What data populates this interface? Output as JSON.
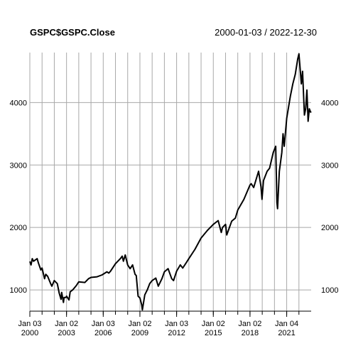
{
  "header": {
    "title": "GSPC$GSPC.Close",
    "date_range": "2000-01-03 / 2022-12-30"
  },
  "chart_data": {
    "type": "line",
    "title": "GSPC$GSPC.Close",
    "subtitle": "2000-01-03 / 2022-12-30",
    "xlabel": "",
    "ylabel": "",
    "xlim": [
      2000.0,
      2023.0
    ],
    "ylim": [
      660,
      4800
    ],
    "grid": true,
    "line_color": "#000000",
    "grid_color": "#a8a8a8",
    "y_ticks": [
      1000,
      2000,
      3000,
      4000
    ],
    "y_tick_labels": [
      "1000",
      "2000",
      "3000",
      "4000"
    ],
    "x_ticks": [
      2000.0,
      2003.0,
      2006.0,
      2009.0,
      2012.0,
      2015.0,
      2018.0,
      2021.0
    ],
    "x_tick_labels": [
      [
        "Jan 03",
        "2000"
      ],
      [
        "Jan 02",
        "2003"
      ],
      [
        "Jan 03",
        "2006"
      ],
      [
        "Jan 02",
        "2009"
      ],
      [
        "Jan 03",
        "2012"
      ],
      [
        "Jan 02",
        "2015"
      ],
      [
        "Jan 02",
        "2018"
      ],
      [
        "Jan 04",
        "2021"
      ]
    ],
    "x_gridlines": [
      2000.0,
      2001.0,
      2002.0,
      2003.0,
      2004.0,
      2005.0,
      2006.0,
      2007.0,
      2008.0,
      2009.0,
      2010.0,
      2011.0,
      2012.0,
      2013.0,
      2014.0,
      2015.0,
      2016.0,
      2017.0,
      2018.0,
      2019.0,
      2020.0,
      2021.0,
      2022.0
    ],
    "series": [
      {
        "x": [
          2000.0,
          2000.1,
          2000.2,
          2000.3,
          2000.45,
          2000.6,
          2000.7,
          2000.9,
          2001.0,
          2001.2,
          2001.3,
          2001.45,
          2001.7,
          2001.8,
          2002.0,
          2002.25,
          2002.4,
          2002.55,
          2002.6,
          2002.75,
          2002.8,
          2002.95,
          2003.0,
          2003.2,
          2003.3,
          2003.5,
          2003.8,
          2004.0,
          2004.5,
          2004.8,
          2005.0,
          2005.5,
          2005.9,
          2006.3,
          2006.45,
          2006.6,
          2007.0,
          2007.4,
          2007.55,
          2007.65,
          2007.8,
          2008.0,
          2008.2,
          2008.4,
          2008.6,
          2008.7,
          2008.85,
          2009.0,
          2009.15,
          2009.2,
          2009.4,
          2009.6,
          2009.8,
          2010.0,
          2010.3,
          2010.5,
          2010.8,
          2011.0,
          2011.3,
          2011.6,
          2011.75,
          2012.0,
          2012.3,
          2012.5,
          2012.8,
          2013.0,
          2013.5,
          2014.0,
          2014.5,
          2015.0,
          2015.4,
          2015.65,
          2015.75,
          2016.0,
          2016.1,
          2016.5,
          2016.8,
          2017.0,
          2017.5,
          2018.0,
          2018.1,
          2018.3,
          2018.7,
          2018.9,
          2018.98,
          2019.1,
          2019.4,
          2019.6,
          2019.9,
          2020.1,
          2020.2,
          2020.25,
          2020.4,
          2020.6,
          2020.7,
          2020.8,
          2021.0,
          2021.3,
          2021.5,
          2021.7,
          2021.9,
          2022.0,
          2022.2,
          2022.3,
          2022.45,
          2022.55,
          2022.65,
          2022.75,
          2022.85,
          2022.95,
          2023.0
        ],
        "y": [
          1455,
          1400,
          1500,
          1460,
          1480,
          1500,
          1430,
          1320,
          1350,
          1180,
          1250,
          1220,
          1100,
          1060,
          1150,
          1100,
          950,
          850,
          960,
          800,
          880,
          880,
          900,
          840,
          970,
          1000,
          1070,
          1130,
          1120,
          1180,
          1200,
          1210,
          1240,
          1290,
          1270,
          1300,
          1420,
          1500,
          1540,
          1460,
          1560,
          1400,
          1340,
          1400,
          1250,
          1230,
          900,
          870,
          760,
          680,
          920,
          1000,
          1100,
          1150,
          1190,
          1060,
          1180,
          1290,
          1340,
          1180,
          1150,
          1300,
          1400,
          1350,
          1440,
          1500,
          1650,
          1830,
          1950,
          2050,
          2110,
          1920,
          2000,
          2050,
          1880,
          2100,
          2150,
          2280,
          2450,
          2680,
          2700,
          2640,
          2900,
          2650,
          2450,
          2750,
          2900,
          2950,
          3200,
          3300,
          2400,
          2300,
          2900,
          3200,
          3500,
          3300,
          3750,
          4100,
          4300,
          4450,
          4700,
          4780,
          4300,
          4500,
          3800,
          3900,
          4200,
          3700,
          3900,
          3850,
          3840
        ]
      }
    ]
  }
}
